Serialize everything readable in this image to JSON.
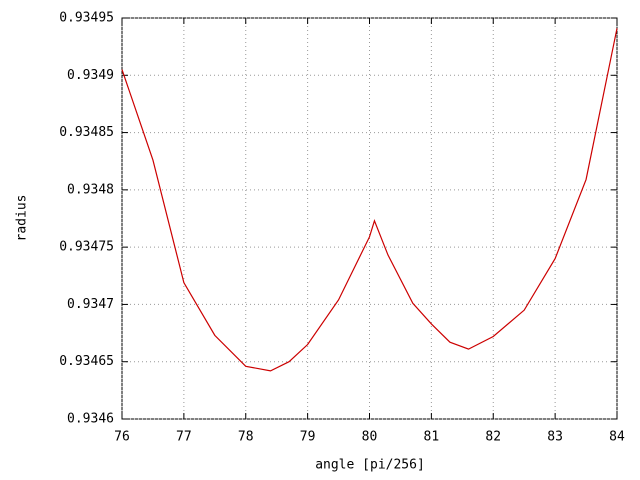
{
  "chart_data": {
    "type": "line",
    "xlabel": "angle [pi/256]",
    "ylabel": "radius",
    "x": [
      76,
      76.5,
      77,
      77.5,
      78,
      78.2,
      78.4,
      78.7,
      79,
      79.5,
      80,
      80.08,
      80.3,
      80.7,
      81,
      81.3,
      81.6,
      82,
      82.5,
      83,
      83.5,
      84
    ],
    "series": [
      {
        "name": "radius",
        "color": "#cc0000",
        "values": [
          0.934905,
          0.934826,
          0.934719,
          0.934673,
          0.934646,
          0.934644,
          0.934642,
          0.93465,
          0.934665,
          0.934704,
          0.934759,
          0.934773,
          0.934743,
          0.934701,
          0.934683,
          0.934667,
          0.934661,
          0.934672,
          0.934695,
          0.93474,
          0.934809,
          0.934941
        ]
      }
    ],
    "xlim": [
      76,
      84
    ],
    "xticks": [
      76,
      77,
      78,
      79,
      80,
      81,
      82,
      83,
      84
    ],
    "ylim": [
      0.9346,
      0.93495
    ],
    "yticks": [
      0.9346,
      0.93465,
      0.9347,
      0.93475,
      0.9348,
      0.93485,
      0.9349,
      0.93495
    ],
    "grid": true
  }
}
